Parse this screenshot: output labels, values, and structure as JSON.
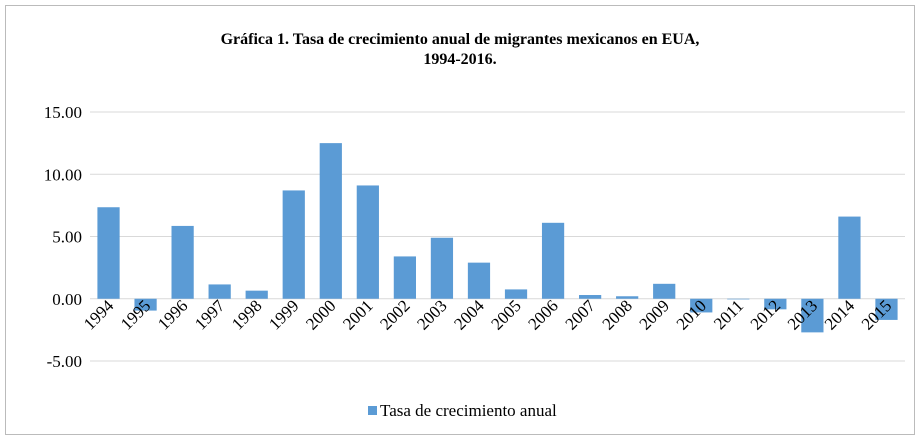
{
  "chart_data": {
    "type": "bar",
    "title": "Gráfica 1. Tasa de crecimiento anual de migrantes mexicanos en EUA, 1994-2016.",
    "categories": [
      "1994",
      "1995",
      "1996",
      "1997",
      "1998",
      "1999",
      "2000",
      "2001",
      "2002",
      "2003",
      "2004",
      "2005",
      "2006",
      "2007",
      "2008",
      "2009",
      "2010",
      "2011",
      "2012",
      "2013",
      "2014",
      "2015"
    ],
    "series": [
      {
        "name": "Tasa de crecimiento anual",
        "color": "#5b9bd5",
        "values": [
          7.35,
          -0.95,
          5.85,
          1.15,
          0.65,
          8.7,
          12.5,
          9.1,
          3.4,
          4.9,
          2.9,
          0.75,
          6.1,
          0.3,
          0.2,
          1.2,
          -1.1,
          -0.05,
          -0.85,
          -2.7,
          6.6,
          -1.7
        ]
      }
    ],
    "ylim": [
      -5,
      15
    ],
    "yticks": [
      {
        "value": -5,
        "label": "-5.00"
      },
      {
        "value": 0,
        "label": "0.00"
      },
      {
        "value": 5,
        "label": "5.00"
      },
      {
        "value": 10,
        "label": "10.00"
      },
      {
        "value": 15,
        "label": "15.00"
      }
    ],
    "grid": true,
    "legend": "bottom"
  }
}
